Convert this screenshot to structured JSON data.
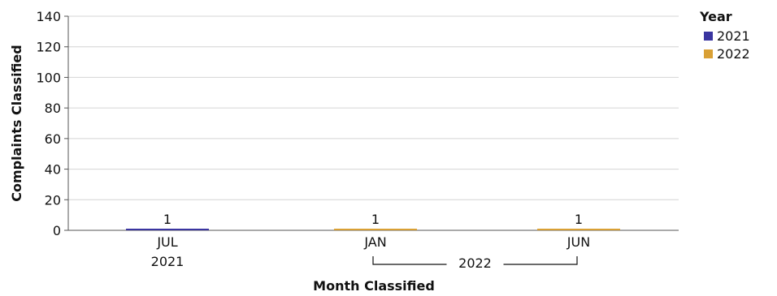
{
  "chart_data": {
    "type": "bar",
    "title": "",
    "xlabel": "Month Classified",
    "ylabel": "Complaints Classified",
    "ylim": [
      0,
      140
    ],
    "yticks": [
      0,
      20,
      40,
      60,
      80,
      100,
      120,
      140
    ],
    "grid": true,
    "categories": [
      {
        "month": "JUL",
        "year": "2021",
        "series": "2021",
        "value": 1
      },
      {
        "month": "JAN",
        "year": "2022",
        "series": "2022",
        "value": 1
      },
      {
        "month": "JUN",
        "year": "2022",
        "series": "2022",
        "value": 1
      }
    ],
    "x_groups": [
      {
        "label": "2021",
        "months": [
          "JUL"
        ]
      },
      {
        "label": "2022",
        "months": [
          "JAN",
          "JUN"
        ]
      }
    ],
    "legend": {
      "title": "Year",
      "position": "top-right",
      "items": [
        {
          "name": "2021",
          "color": "#3a35a0"
        },
        {
          "name": "2022",
          "color": "#d9a035"
        }
      ]
    }
  }
}
